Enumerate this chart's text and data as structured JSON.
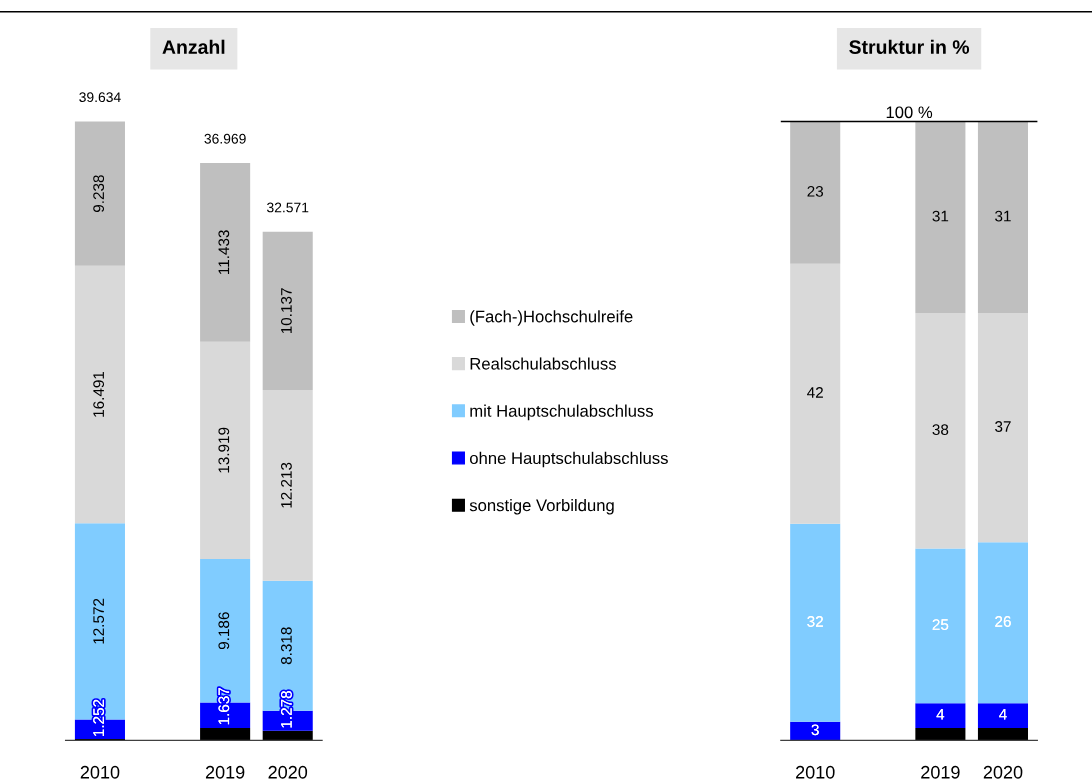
{
  "chart_data": [
    {
      "type": "bar",
      "title": "Anzahl",
      "categories": [
        "2010",
        null,
        "2019",
        "2020"
      ],
      "stacked": true,
      "tick_labels": "x",
      "grid": false,
      "legend": "right",
      "totals": [
        "39.634",
        null,
        "36.969",
        "32.571"
      ],
      "series": [
        {
          "name": "sonstige Vorbildung",
          "color": "#000000",
          "values": [
            81,
            null,
            794,
            625
          ],
          "value_labels": [
            null,
            null,
            null,
            null
          ]
        },
        {
          "name": "ohne Hauptschulabschluss",
          "color": "#0000ff",
          "values": [
            1252,
            null,
            1637,
            1278
          ],
          "value_labels": [
            "1.252",
            null,
            "1.637",
            "1.278"
          ]
        },
        {
          "name": "mit Hauptschulabschluss",
          "color": "#80ccff",
          "values": [
            12572,
            null,
            9186,
            8318
          ],
          "value_labels": [
            "12.572",
            null,
            "9.186",
            "8.318"
          ]
        },
        {
          "name": "Realschulabschluss",
          "color": "#d9d9d9",
          "values": [
            16491,
            null,
            13919,
            12213
          ],
          "value_labels": [
            "16.491",
            null,
            "13.919",
            "12.213"
          ]
        },
        {
          "name": "(Fach-)Hochschulreife",
          "color": "#bfbfbf",
          "values": [
            9238,
            null,
            11433,
            10137
          ],
          "value_labels": [
            "9.238",
            null,
            "11.433",
            "10.137"
          ]
        }
      ]
    },
    {
      "type": "bar",
      "title": "Struktur in %",
      "categories": [
        "2010",
        null,
        "2019",
        "2020"
      ],
      "stacked": true,
      "tick_labels": "x",
      "grid": false,
      "ref_lines": [
        {
          "axis": "y",
          "value": 100,
          "label": "100 %"
        }
      ],
      "series": [
        {
          "color": "#000000",
          "values": [
            0,
            null,
            2,
            2
          ],
          "value_labels": [
            null,
            null,
            null,
            null
          ]
        },
        {
          "color": "#0000ff",
          "values": [
            3,
            null,
            4,
            4
          ],
          "value_labels": [
            "3",
            null,
            "4",
            "4"
          ]
        },
        {
          "color": "#80ccff",
          "values": [
            32,
            null,
            25,
            26
          ],
          "value_labels": [
            "32",
            null,
            "25",
            "26"
          ]
        },
        {
          "color": "#d9d9d9",
          "values": [
            42,
            null,
            38,
            37
          ],
          "value_labels": [
            "42",
            null,
            "38",
            "37"
          ]
        },
        {
          "color": "#bfbfbf",
          "values": [
            23,
            null,
            31,
            31
          ],
          "value_labels": [
            "23",
            null,
            "31",
            "31"
          ]
        }
      ]
    }
  ]
}
